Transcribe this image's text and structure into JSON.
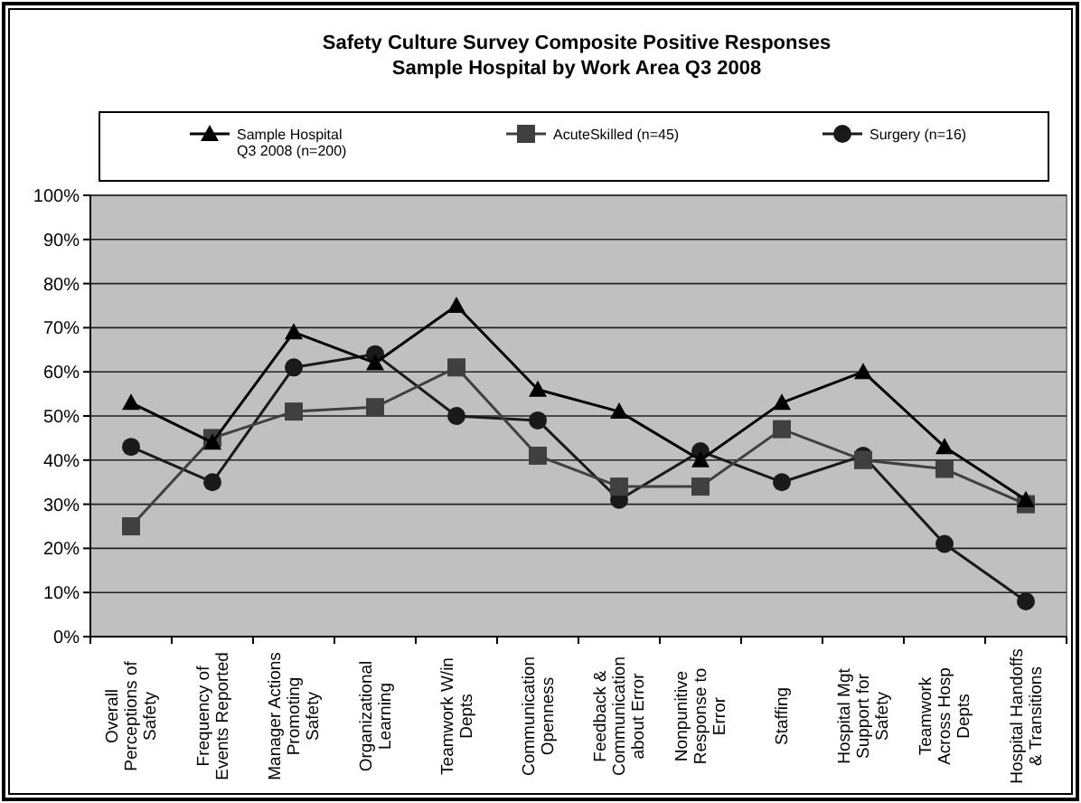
{
  "chart_data": {
    "type": "line",
    "title": "Safety Culture Survey Composite Positive Responses",
    "subtitle": "Sample Hospital by Work Area Q3 2008",
    "categories": [
      "Overall\nPerceptions of\nSafety",
      "Frequency of\nEvents Reported",
      "Manager Actions\nPromoting\nSafety",
      "Organizational\nLearning",
      "Teamwork W/in\nDepts",
      "Communication\nOpenness",
      "Feedback &\nCommunication\nabout Error",
      "Nonpunitive\nResponse to\nError",
      "Staffing",
      "Hospital Mgt\nSupport for\nSafety",
      "Teamwork\nAcross Hosp\nDepts",
      "Hospital Handoffs\n& Transitions"
    ],
    "series": [
      {
        "name": "Sample Hospital\nQ3 2008 (n=200)",
        "color": "#000000",
        "marker": "triangle",
        "values": [
          53,
          44,
          69,
          62,
          75,
          56,
          51,
          40,
          53,
          60,
          43,
          31
        ]
      },
      {
        "name": "AcuteSkilled (n=45)",
        "color": "#404040",
        "marker": "square",
        "values": [
          25,
          45,
          51,
          52,
          61,
          41,
          34,
          34,
          47,
          40,
          38,
          30
        ]
      },
      {
        "name": "Surgery (n=16)",
        "color": "#1a1a1a",
        "marker": "circle",
        "values": [
          43,
          35,
          61,
          64,
          50,
          49,
          31,
          42,
          35,
          41,
          21,
          8
        ]
      }
    ],
    "ylim": [
      0,
      100
    ],
    "yticks": [
      {
        "value": 0,
        "label": "0%"
      },
      {
        "value": 10,
        "label": "10%"
      },
      {
        "value": 20,
        "label": "20%"
      },
      {
        "value": 30,
        "label": "30%"
      },
      {
        "value": 40,
        "label": "40%"
      },
      {
        "value": 50,
        "label": "50%"
      },
      {
        "value": 60,
        "label": "60%"
      },
      {
        "value": 70,
        "label": "70%"
      },
      {
        "value": 80,
        "label": "80%"
      },
      {
        "value": 90,
        "label": "90%"
      },
      {
        "value": 100,
        "label": "100%"
      }
    ],
    "grid": "y",
    "legend": "top",
    "line_style": "solid"
  }
}
